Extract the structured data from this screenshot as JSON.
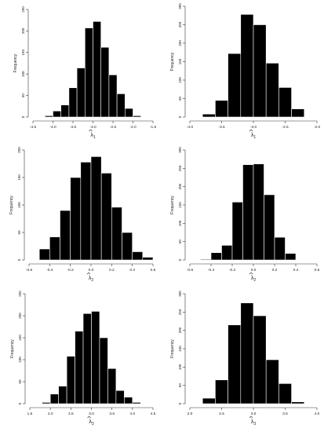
{
  "chart_data": [
    {
      "type": "bar",
      "ylabel": "Frequency",
      "xlabel_main": "λ",
      "xlabel_sub": "1",
      "xlim": [
        -4.5,
        -1.5
      ],
      "ylim": [
        0,
        250
      ],
      "xticks": [
        "-4.5",
        "-4.0",
        "-3.5",
        "-3.0",
        "-2.5",
        "-2.0",
        "-1.5"
      ],
      "yticks": [
        "0",
        "50",
        "100",
        "150",
        "200",
        "250"
      ],
      "bin_edges": [
        -4.2,
        -4.0,
        -3.8,
        -3.6,
        -3.4,
        -3.2,
        -3.0,
        -2.8,
        -2.6,
        -2.4,
        -2.2,
        -2.0,
        -1.8
      ],
      "values": [
        3,
        14,
        28,
        68,
        114,
        207,
        222,
        162,
        98,
        54,
        20,
        3
      ]
    },
    {
      "type": "bar",
      "ylabel": "Frequency",
      "xlabel_main": "λ",
      "xlabel_sub": "1",
      "xlim": [
        -4.0,
        -2.0
      ],
      "ylim": [
        0,
        300
      ],
      "xticks": [
        "-4.0",
        "-3.5",
        "-3.0",
        "-2.5",
        "-2.0"
      ],
      "yticks": [
        "0",
        "50",
        "100",
        "150",
        "200",
        "250",
        "300"
      ],
      "bin_edges": [
        -3.8,
        -3.6,
        -3.4,
        -3.2,
        -3.0,
        -2.8,
        -2.6,
        -2.4,
        -2.2
      ],
      "values": [
        8,
        45,
        172,
        278,
        250,
        146,
        80,
        22
      ]
    },
    {
      "type": "bar",
      "ylabel": "Frequency",
      "xlabel_main": "λ",
      "xlabel_sub": "2",
      "xlim": [
        -0.6,
        0.6
      ],
      "ylim": [
        0,
        200
      ],
      "xticks": [
        "-0.6",
        "-0.4",
        "-0.2",
        "0.0",
        "0.2",
        "0.4",
        "0.6"
      ],
      "yticks": [
        "0",
        "50",
        "100",
        "150",
        "200"
      ],
      "bin_edges": [
        -0.5,
        -0.4,
        -0.3,
        -0.2,
        -0.1,
        0.0,
        0.1,
        0.2,
        0.3,
        0.4,
        0.5,
        0.6
      ],
      "values": [
        20,
        42,
        90,
        150,
        178,
        188,
        158,
        96,
        50,
        15,
        5
      ]
    },
    {
      "type": "bar",
      "ylabel": "Frequency",
      "xlabel_main": "λ",
      "xlabel_sub": "2",
      "xlim": [
        -0.6,
        0.6
      ],
      "ylim": [
        0,
        300
      ],
      "xticks": [
        "-0.6",
        "-0.4",
        "-0.2",
        "0.0",
        "0.2",
        "0.4",
        "0.6"
      ],
      "yticks": [
        "0",
        "50",
        "100",
        "150",
        "200",
        "250",
        "300"
      ],
      "bin_edges": [
        -0.5,
        -0.4,
        -0.3,
        -0.2,
        -0.1,
        0.0,
        0.1,
        0.2,
        0.3,
        0.4
      ],
      "values": [
        2,
        20,
        40,
        158,
        260,
        262,
        178,
        62,
        18
      ]
    },
    {
      "type": "bar",
      "ylabel": "Frequency",
      "xlabel_main": "λ",
      "xlabel_sub": "3",
      "xlim": [
        1.5,
        4.5
      ],
      "ylim": [
        0,
        250
      ],
      "xticks": [
        "1.5",
        "2.0",
        "2.5",
        "3.0",
        "3.5",
        "4.0",
        "4.5"
      ],
      "yticks": [
        "0",
        "50",
        "100",
        "150",
        "200",
        "250"
      ],
      "bin_edges": [
        1.8,
        2.0,
        2.2,
        2.4,
        2.6,
        2.8,
        3.0,
        3.2,
        3.4,
        3.6,
        3.8,
        4.0,
        4.2
      ],
      "values": [
        3,
        22,
        40,
        108,
        165,
        205,
        210,
        150,
        80,
        30,
        15,
        3
      ]
    },
    {
      "type": "bar",
      "ylabel": "Frequency",
      "xlabel_main": "λ",
      "xlabel_sub": "3",
      "xlim": [
        2.0,
        4.0
      ],
      "ylim": [
        0,
        300
      ],
      "xticks": [
        "2.0",
        "2.5",
        "3.0",
        "3.5",
        "4.0"
      ],
      "yticks": [
        "0",
        "50",
        "100",
        "150",
        "200",
        "250",
        "300"
      ],
      "bin_edges": [
        2.2,
        2.4,
        2.6,
        2.8,
        3.0,
        3.2,
        3.4,
        3.6,
        3.8
      ],
      "values": [
        15,
        65,
        215,
        275,
        240,
        120,
        55,
        5
      ]
    }
  ]
}
